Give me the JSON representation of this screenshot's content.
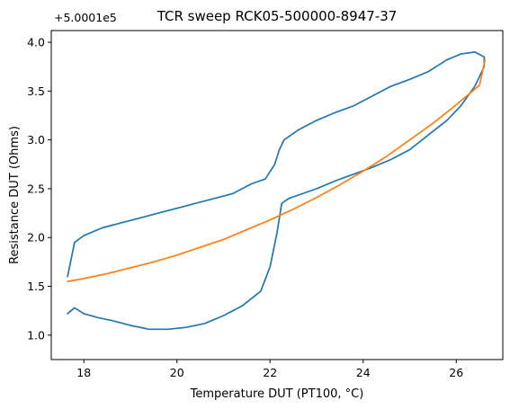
{
  "chart_data": {
    "type": "line",
    "title": "TCR sweep RCK05-500000-8947-37",
    "xlabel": "Temperature DUT (PT100, °C)",
    "ylabel": "Resistance DUT (Ohms)",
    "y_offset_label": "+5.0001e5",
    "xlim": [
      17.3,
      27.0
    ],
    "ylim": [
      0.75,
      4.12
    ],
    "x_ticks": [
      18,
      20,
      22,
      24,
      26
    ],
    "x_tick_labels": [
      "18",
      "20",
      "22",
      "24",
      "26"
    ],
    "y_ticks": [
      1.0,
      1.5,
      2.0,
      2.5,
      3.0,
      3.5,
      4.0
    ],
    "y_tick_labels": [
      "1.0",
      "1.5",
      "2.0",
      "2.5",
      "3.0",
      "3.5",
      "4.0"
    ],
    "grid": false,
    "series": [
      {
        "color": "#1f77b4",
        "x": [
          17.65,
          17.8,
          18.0,
          18.3,
          18.6,
          19.0,
          19.4,
          19.8,
          20.2,
          20.6,
          21.0,
          21.4,
          21.8,
          22.0,
          22.15,
          22.25,
          22.4,
          22.7,
          23.0,
          23.4,
          23.8,
          24.2,
          24.6,
          25.0,
          25.4,
          25.8,
          26.1,
          26.4,
          26.6,
          26.6,
          26.4,
          26.1,
          25.8,
          25.4,
          25.0,
          24.6,
          24.2,
          23.8,
          23.4,
          23.0,
          22.6,
          22.3,
          22.2,
          22.1,
          21.9,
          21.6,
          21.2,
          20.8,
          20.4,
          20.0,
          19.6,
          19.2,
          18.8,
          18.4,
          18.0,
          17.8,
          17.65
        ],
        "y": [
          1.22,
          1.28,
          1.22,
          1.18,
          1.15,
          1.1,
          1.06,
          1.06,
          1.08,
          1.12,
          1.2,
          1.3,
          1.45,
          1.7,
          2.05,
          2.35,
          2.4,
          2.45,
          2.5,
          2.58,
          2.65,
          2.72,
          2.8,
          2.9,
          3.05,
          3.2,
          3.35,
          3.55,
          3.75,
          3.85,
          3.9,
          3.88,
          3.82,
          3.7,
          3.62,
          3.55,
          3.45,
          3.35,
          3.28,
          3.2,
          3.1,
          3.0,
          2.9,
          2.75,
          2.6,
          2.55,
          2.45,
          2.4,
          2.35,
          2.3,
          2.25,
          2.2,
          2.15,
          2.1,
          2.02,
          1.95,
          1.6
        ]
      },
      {
        "color": "#ff7f0e",
        "x": [
          17.65,
          18.0,
          18.5,
          19.0,
          19.5,
          20.0,
          20.5,
          21.0,
          21.5,
          22.0,
          22.5,
          23.0,
          23.5,
          24.0,
          24.5,
          25.0,
          25.5,
          26.0,
          26.5,
          26.62
        ],
        "y": [
          1.55,
          1.58,
          1.63,
          1.69,
          1.75,
          1.82,
          1.9,
          1.98,
          2.08,
          2.18,
          2.29,
          2.41,
          2.54,
          2.68,
          2.83,
          3.0,
          3.17,
          3.36,
          3.56,
          3.82
        ]
      }
    ]
  }
}
